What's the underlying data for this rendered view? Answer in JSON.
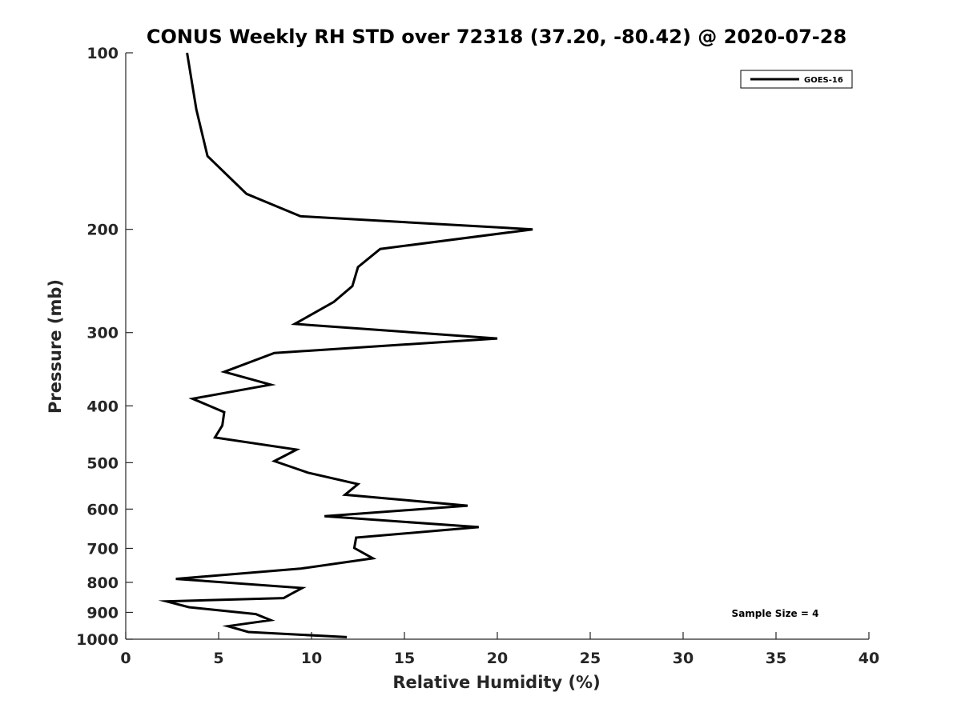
{
  "chart_data": {
    "type": "line",
    "title": "CONUS Weekly RH STD over 72318 (37.20, -80.42) @ 2020-07-28",
    "xlabel": "Relative Humidity (%)",
    "ylabel": "Pressure (mb)",
    "xlim": [
      0,
      40
    ],
    "ylim": [
      100,
      1000
    ],
    "yscale": "log",
    "y_reversed": true,
    "grid": false,
    "legend_position": "top-right",
    "x_ticks": [
      0,
      5,
      10,
      15,
      20,
      25,
      30,
      35,
      40
    ],
    "x_tick_labels": [
      "0",
      "5",
      "10",
      "15",
      "20",
      "25",
      "30",
      "35",
      "40"
    ],
    "y_ticks": [
      100,
      200,
      300,
      400,
      500,
      600,
      700,
      800,
      900,
      1000
    ],
    "y_tick_labels": [
      "100",
      "200",
      "300",
      "400",
      "500",
      "600",
      "700",
      "800",
      "900",
      "1000"
    ],
    "annotation": "Sample Size = 4",
    "series": [
      {
        "name": "GOES-16",
        "color": "#000000",
        "x": [
          3.3,
          3.8,
          4.4,
          6.5,
          9.4,
          21.9,
          13.7,
          12.5,
          12.2,
          11.2,
          9.1,
          20.0,
          8.0,
          5.3,
          7.8,
          3.6,
          5.3,
          5.2,
          4.8,
          9.2,
          8.0,
          9.8,
          12.5,
          11.8,
          18.4,
          10.7,
          19.0,
          12.4,
          12.3,
          13.3,
          9.4,
          2.7,
          9.5,
          8.9,
          8.5,
          2.2,
          3.4,
          7.0,
          7.8,
          5.5,
          6.6,
          11.9
        ],
        "y": [
          100,
          125,
          150,
          174,
          190,
          200,
          216,
          232,
          250,
          266,
          290,
          307,
          325,
          350,
          368,
          389,
          410,
          432,
          453,
          475,
          497,
          520,
          544,
          567,
          592,
          617,
          644,
          671,
          699,
          728,
          758,
          789,
          818,
          837,
          851,
          862,
          882,
          906,
          928,
          950,
          972,
          992
        ]
      }
    ]
  }
}
